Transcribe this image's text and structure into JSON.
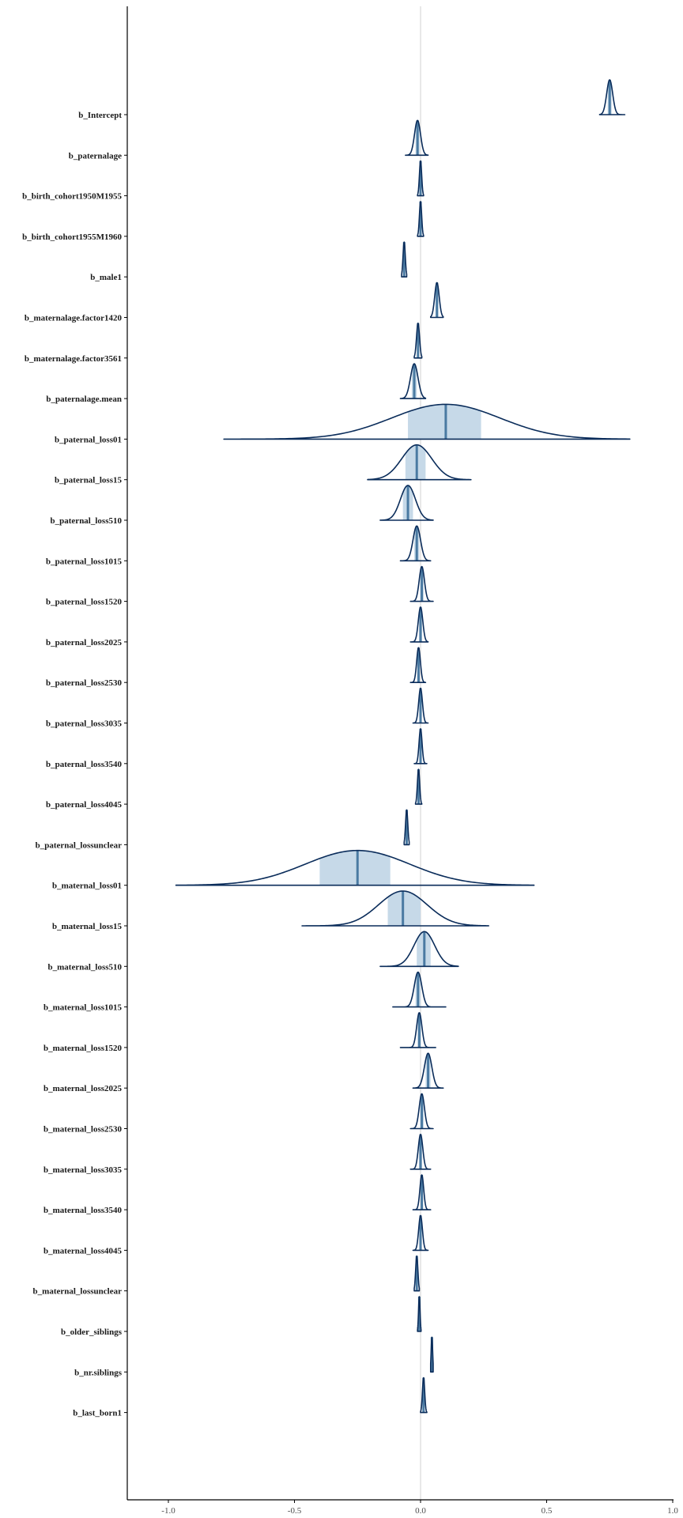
{
  "chart_data": {
    "type": "ridgeline",
    "title": "",
    "xlabel": "",
    "ylabel": "",
    "xlim": [
      -1.16,
      1.0
    ],
    "x_ticks": [
      -1.0,
      -0.5,
      0.0,
      0.5,
      1.0
    ],
    "x_tick_labels": [
      "-1.0",
      "-0.5",
      "0.0",
      "0.5",
      "1.0"
    ],
    "reference_line": 0.0,
    "grid": false,
    "colors": {
      "outline": "#0a2c5a",
      "interval_fill": "#c6d9e8",
      "median_line": "#4a7aa2",
      "reference": "#d9d9d9",
      "axis": "#000000"
    },
    "series": [
      {
        "label": "b_Intercept",
        "median": 0.75,
        "inner": [
          0.742,
          0.758
        ],
        "outer": [
          0.71,
          0.81
        ]
      },
      {
        "label": "b_paternalage",
        "median": -0.012,
        "inner": [
          -0.02,
          -0.004
        ],
        "outer": [
          -0.06,
          0.03
        ]
      },
      {
        "label": "b_birth_cohort1950M1955",
        "median": 0.0,
        "inner": [
          -0.003,
          0.003
        ],
        "outer": [
          -0.012,
          0.012
        ]
      },
      {
        "label": "b_birth_cohort1955M1960",
        "median": 0.0,
        "inner": [
          -0.003,
          0.003
        ],
        "outer": [
          -0.012,
          0.012
        ]
      },
      {
        "label": "b_male1",
        "median": -0.065,
        "inner": [
          -0.068,
          -0.062
        ],
        "outer": [
          -0.075,
          -0.055
        ]
      },
      {
        "label": "b_maternalage.factor1420",
        "median": 0.065,
        "inner": [
          0.059,
          0.071
        ],
        "outer": [
          0.04,
          0.09
        ]
      },
      {
        "label": "b_maternalage.factor3561",
        "median": -0.01,
        "inner": [
          -0.014,
          -0.006
        ],
        "outer": [
          -0.025,
          0.005
        ]
      },
      {
        "label": "b_paternalage.mean",
        "median": -0.025,
        "inner": [
          -0.035,
          -0.015
        ],
        "outer": [
          -0.08,
          0.02
        ]
      },
      {
        "label": "b_paternal_loss01",
        "median": 0.1,
        "inner": [
          -0.05,
          0.24
        ],
        "outer": [
          -0.78,
          0.83
        ]
      },
      {
        "label": "b_paternal_loss15",
        "median": -0.015,
        "inner": [
          -0.06,
          0.02
        ],
        "outer": [
          -0.21,
          0.2
        ]
      },
      {
        "label": "b_paternal_loss510",
        "median": -0.05,
        "inner": [
          -0.07,
          -0.03
        ],
        "outer": [
          -0.16,
          0.05
        ]
      },
      {
        "label": "b_paternal_loss1015",
        "median": -0.015,
        "inner": [
          -0.025,
          -0.005
        ],
        "outer": [
          -0.08,
          0.04
        ]
      },
      {
        "label": "b_paternal_loss1520",
        "median": 0.005,
        "inner": [
          -0.002,
          0.012
        ],
        "outer": [
          -0.04,
          0.05
        ]
      },
      {
        "label": "b_paternal_loss2025",
        "median": 0.0,
        "inner": [
          -0.006,
          0.006
        ],
        "outer": [
          -0.04,
          0.03
        ]
      },
      {
        "label": "b_paternal_loss2530",
        "median": -0.008,
        "inner": [
          -0.013,
          -0.003
        ],
        "outer": [
          -0.04,
          0.02
        ]
      },
      {
        "label": "b_paternal_loss3035",
        "median": 0.0,
        "inner": [
          -0.005,
          0.005
        ],
        "outer": [
          -0.03,
          0.03
        ]
      },
      {
        "label": "b_paternal_loss3540",
        "median": 0.0,
        "inner": [
          -0.004,
          0.004
        ],
        "outer": [
          -0.025,
          0.025
        ]
      },
      {
        "label": "b_paternal_loss4045",
        "median": -0.008,
        "inner": [
          -0.011,
          -0.005
        ],
        "outer": [
          -0.02,
          0.005
        ]
      },
      {
        "label": "b_paternal_lossunclear",
        "median": -0.055,
        "inner": [
          -0.058,
          -0.052
        ],
        "outer": [
          -0.065,
          -0.045
        ]
      },
      {
        "label": "b_maternal_loss01",
        "median": -0.25,
        "inner": [
          -0.4,
          -0.12
        ],
        "outer": [
          -0.97,
          0.45
        ]
      },
      {
        "label": "b_maternal_loss15",
        "median": -0.07,
        "inner": [
          -0.13,
          0.0
        ],
        "outer": [
          -0.47,
          0.27
        ]
      },
      {
        "label": "b_maternal_loss510",
        "median": 0.015,
        "inner": [
          -0.015,
          0.04
        ],
        "outer": [
          -0.16,
          0.15
        ]
      },
      {
        "label": "b_maternal_loss1015",
        "median": -0.01,
        "inner": [
          -0.02,
          0.0
        ],
        "outer": [
          -0.11,
          0.1
        ]
      },
      {
        "label": "b_maternal_loss1520",
        "median": -0.005,
        "inner": [
          -0.012,
          0.002
        ],
        "outer": [
          -0.08,
          0.06
        ]
      },
      {
        "label": "b_maternal_loss2025",
        "median": 0.03,
        "inner": [
          0.02,
          0.04
        ],
        "outer": [
          -0.03,
          0.09
        ]
      },
      {
        "label": "b_maternal_loss2530",
        "median": 0.005,
        "inner": [
          -0.002,
          0.012
        ],
        "outer": [
          -0.04,
          0.05
        ]
      },
      {
        "label": "b_maternal_loss3035",
        "median": 0.0,
        "inner": [
          -0.006,
          0.006
        ],
        "outer": [
          -0.04,
          0.04
        ]
      },
      {
        "label": "b_maternal_loss3540",
        "median": 0.005,
        "inner": [
          0.0,
          0.01
        ],
        "outer": [
          -0.03,
          0.04
        ]
      },
      {
        "label": "b_maternal_loss4045",
        "median": 0.0,
        "inner": [
          -0.005,
          0.005
        ],
        "outer": [
          -0.03,
          0.03
        ]
      },
      {
        "label": "b_maternal_lossunclear",
        "median": -0.015,
        "inner": [
          -0.018,
          -0.012
        ],
        "outer": [
          -0.025,
          -0.005
        ]
      },
      {
        "label": "b_older_siblings",
        "median": -0.005,
        "inner": [
          -0.007,
          -0.003
        ],
        "outer": [
          -0.012,
          0.002
        ]
      },
      {
        "label": "b_nr.siblings",
        "median": 0.045,
        "inner": [
          0.043,
          0.047
        ],
        "outer": [
          0.04,
          0.05
        ]
      },
      {
        "label": "b_last_born1",
        "median": 0.012,
        "inner": [
          0.009,
          0.015
        ],
        "outer": [
          0.0,
          0.025
        ]
      }
    ]
  }
}
